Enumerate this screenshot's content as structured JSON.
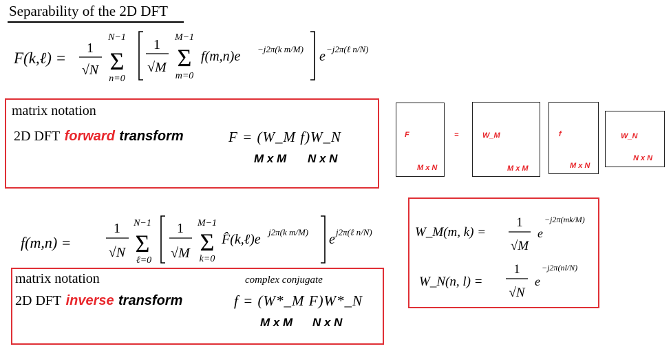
{
  "title": "Separability of the 2D DFT",
  "forward_equation": {
    "lhs": "F(k,ℓ) =",
    "outer_coef_num": "1",
    "outer_coef_den": "√N",
    "outer_sum_top": "N−1",
    "outer_sum_bottom": "n=0",
    "inner_coef_num": "1",
    "inner_coef_den": "√M",
    "inner_sum_top": "M−1",
    "inner_sum_bottom": "m=0",
    "inner_term": "f(m,n)e",
    "inner_exp": "−j2π(k m/M)",
    "outer_term": "e",
    "outer_exp": "−j2π(ℓ n/N)"
  },
  "forward_box": {
    "heading": "matrix notation",
    "label_prefix": "2D DFT",
    "label_emph": "forward",
    "label_suffix": "transform",
    "formula": "F = (W_M f)W_N",
    "dims_1": "M x M",
    "dims_2": "N x N"
  },
  "matrix_diagram": {
    "F_label": "F",
    "F_dims": "M x N",
    "equals": "=",
    "WM_label": "W_M",
    "WM_dims": "M x M",
    "f_label": "f",
    "f_dims": "M x N",
    "WN_label": "W_N",
    "WN_dims": "N x N"
  },
  "inverse_equation": {
    "lhs": "f(m,n) =",
    "outer_coef_num": "1",
    "outer_coef_den": "√N",
    "outer_sum_top": "N−1",
    "outer_sum_bottom": "ℓ=0",
    "inner_coef_num": "1",
    "inner_coef_den": "√M",
    "inner_sum_top": "M−1",
    "inner_sum_bottom": "k=0",
    "inner_term": "F̂(k,ℓ)e",
    "inner_exp": "j2π(k m/M)",
    "outer_term": "e",
    "outer_exp": "j2π(ℓ n/N)"
  },
  "inverse_box": {
    "heading": "matrix notation",
    "label_prefix": "2D DFT",
    "label_emph": "inverse",
    "label_suffix": "transform",
    "note": "complex conjugate",
    "formula": "f = (W*_M F)W*_N",
    "dims_1": "M x M",
    "dims_2": "N x N"
  },
  "kernel_box": {
    "wm_lhs": "W_M(m, k) =",
    "wm_num": "1",
    "wm_den": "√M",
    "wm_base": "e",
    "wm_exp": "−j2π(mk/M)",
    "wn_lhs": "W_N(n, l) =",
    "wn_num": "1",
    "wn_den": "√N",
    "wn_base": "e",
    "wn_exp": "−j2π(nl/N)"
  }
}
